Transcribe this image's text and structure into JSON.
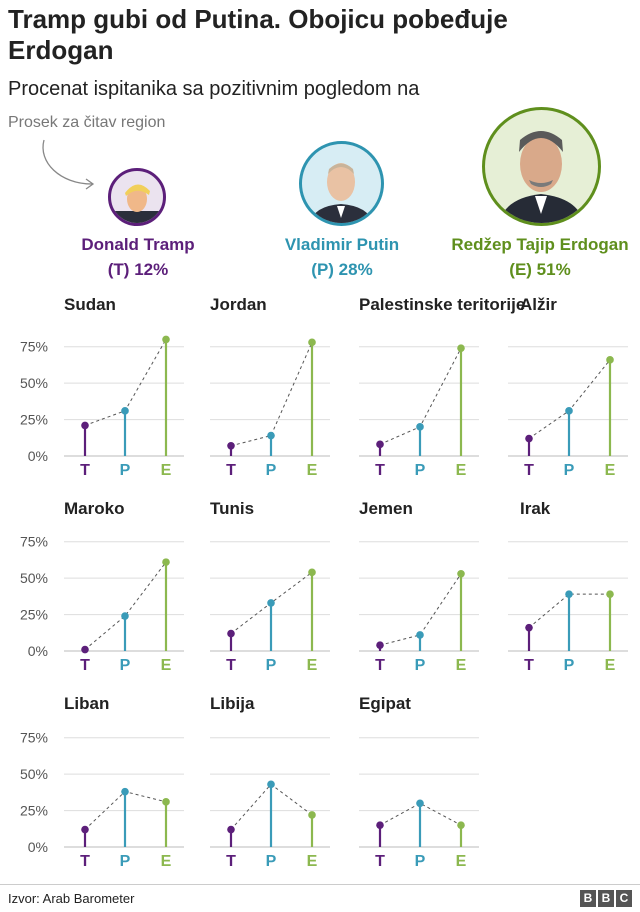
{
  "header": {
    "title": "Tramp gubi od Putina. Obojicu pobeđuje Erdogan",
    "subtitle": "Procenat ispitanika sa pozitivnim pogledom na",
    "average_note": "Prosek za čitav region"
  },
  "leaders": [
    {
      "name": "Donald Tramp",
      "value_label": "(T) 12%",
      "color": "#5c1f7a",
      "avg": 12,
      "icon": "trump-avatar-icon"
    },
    {
      "name": "Vladimir Putin",
      "value_label": "(P) 28%",
      "color": "#2e94b0",
      "avg": 28,
      "icon": "putin-avatar-icon"
    },
    {
      "name": "Redžep Tajip Erdogan",
      "value_label": "(E) 51%",
      "color": "#5f8f1d",
      "avg": 51,
      "icon": "erdogan-avatar-icon"
    }
  ],
  "chart_data": {
    "type": "line",
    "categories": [
      "T",
      "P",
      "E"
    ],
    "category_colors": [
      "#5c1f7a",
      "#3a9bb8",
      "#8cb84f"
    ],
    "y_ticks": [
      "75%",
      "50%",
      "25%",
      "0%"
    ],
    "ylim": [
      0,
      85
    ],
    "series": [
      {
        "name": "Sudan",
        "values": [
          21,
          31,
          80
        ]
      },
      {
        "name": "Jordan",
        "values": [
          7,
          14,
          78
        ]
      },
      {
        "name": "Palestinske teritorije",
        "values": [
          8,
          20,
          74
        ]
      },
      {
        "name": "Alžir",
        "values": [
          12,
          31,
          66
        ]
      },
      {
        "name": "Maroko",
        "values": [
          1,
          24,
          61
        ]
      },
      {
        "name": "Tunis",
        "values": [
          12,
          33,
          54
        ]
      },
      {
        "name": "Jemen",
        "values": [
          4,
          11,
          53
        ]
      },
      {
        "name": "Irak",
        "values": [
          16,
          39,
          39
        ]
      },
      {
        "name": "Liban",
        "values": [
          12,
          38,
          31
        ]
      },
      {
        "name": "Libija",
        "values": [
          12,
          43,
          22
        ]
      },
      {
        "name": "Egipat",
        "values": [
          15,
          30,
          15
        ]
      }
    ]
  },
  "footer": {
    "source": "Izvor: Arab Barometer",
    "logo_letters": [
      "B",
      "B",
      "C"
    ]
  }
}
